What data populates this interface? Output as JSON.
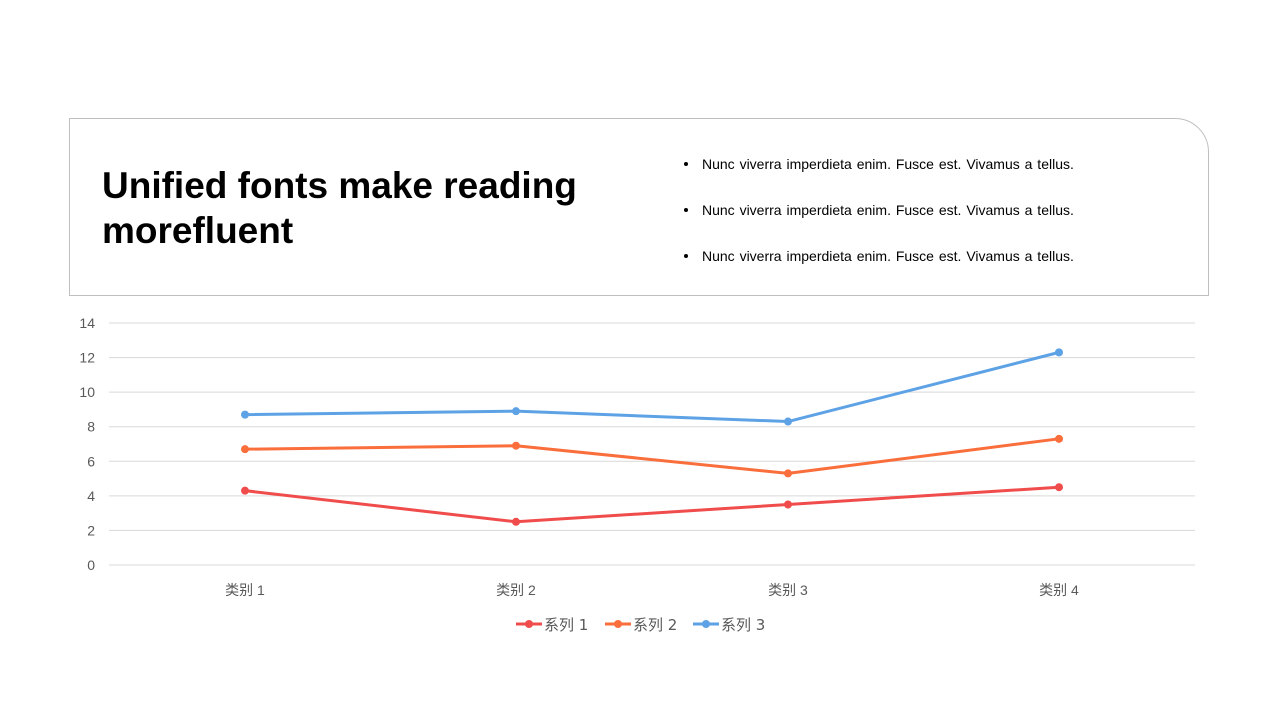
{
  "slide": {
    "title": "Unified fonts make reading morefluent",
    "bullets": [
      "Nunc viverra imperdieta enim. Fusce est. Vivamus a tellus.",
      "Nunc viverra imperdieta enim. Fusce est. Vivamus a tellus.",
      "Nunc viverra imperdieta enim. Fusce est. Vivamus a tellus."
    ]
  },
  "chart_data": {
    "type": "line",
    "categories": [
      "类别 1",
      "类别 2",
      "类别 3",
      "类别 4"
    ],
    "series": [
      {
        "name": "系列 1",
        "values": [
          4.3,
          2.5,
          3.5,
          4.5
        ],
        "color": "#f04c4c"
      },
      {
        "name": "系列 2",
        "values": [
          6.7,
          6.9,
          5.3,
          7.3
        ],
        "color": "#fa6e3c"
      },
      {
        "name": "系列 3",
        "values": [
          8.7,
          8.9,
          8.3,
          12.3
        ],
        "color": "#5ea2e6"
      }
    ],
    "ylim": [
      0,
      14
    ],
    "yticks": [
      0,
      2,
      4,
      6,
      8,
      10,
      12,
      14
    ],
    "grid": true,
    "legend": "bottom",
    "grid_color": "#d9d9d9",
    "text_color": "#595959"
  }
}
